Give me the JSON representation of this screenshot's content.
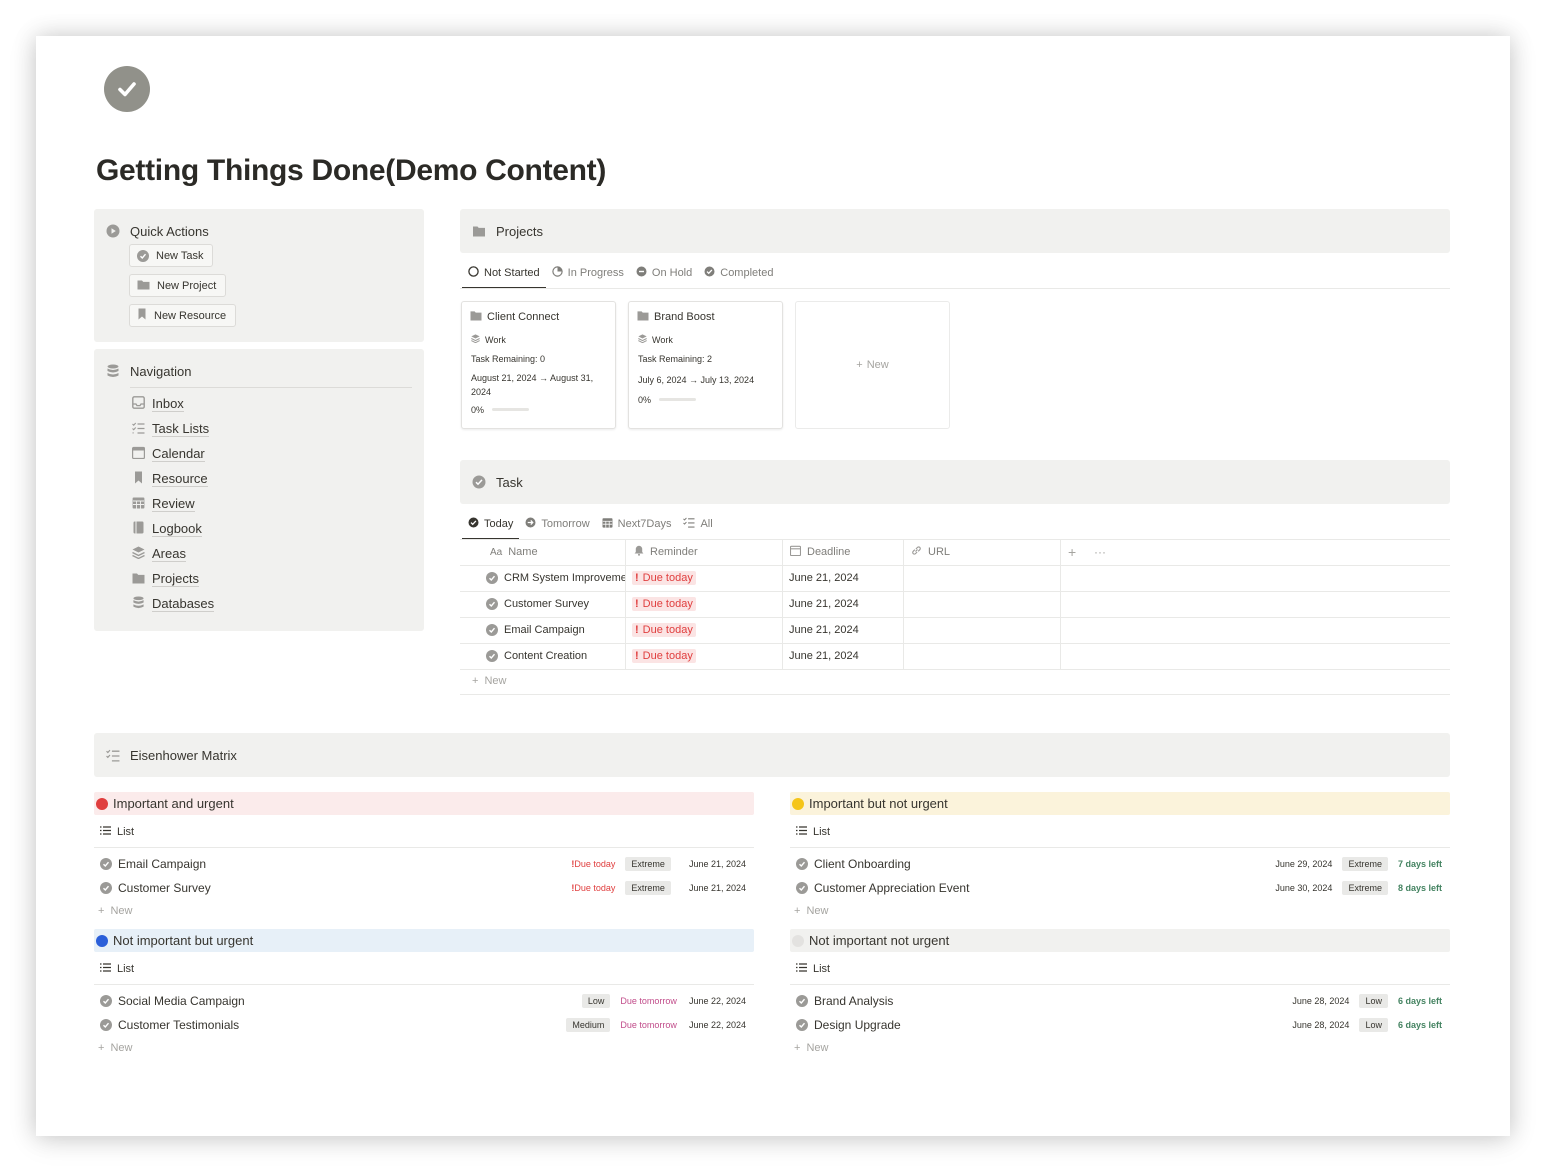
{
  "page": {
    "title": "Getting Things Done(Demo Content)",
    "icon": "check-circle-icon"
  },
  "quick_actions": {
    "title": "Quick Actions",
    "buttons": [
      {
        "label": "New Task",
        "icon": "check-circle-icon"
      },
      {
        "label": "New Project",
        "icon": "folder-icon"
      },
      {
        "label": "New Resource",
        "icon": "bookmark-icon"
      }
    ]
  },
  "navigation": {
    "title": "Navigation",
    "items": [
      {
        "label": "Inbox",
        "icon": "inbox-icon"
      },
      {
        "label": "Task Lists",
        "icon": "checklist-icon"
      },
      {
        "label": "Calendar",
        "icon": "calendar-icon"
      },
      {
        "label": "Resource",
        "icon": "bookmark-icon"
      },
      {
        "label": "Review",
        "icon": "calendar-grid-icon"
      },
      {
        "label": "Logbook",
        "icon": "book-icon"
      },
      {
        "label": "Areas",
        "icon": "layers-icon"
      },
      {
        "label": "Projects",
        "icon": "folder-icon"
      },
      {
        "label": "Databases",
        "icon": "database-icon"
      }
    ]
  },
  "projects": {
    "title": "Projects",
    "tabs": [
      {
        "label": "Not Started",
        "active": true
      },
      {
        "label": "In Progress",
        "active": false
      },
      {
        "label": "On Hold",
        "active": false
      },
      {
        "label": "Completed",
        "active": false
      }
    ],
    "cards": [
      {
        "title": "Client Connect",
        "area": "Work",
        "remaining": "Task Remaining: 0",
        "dates": "August 21, 2024 → August 31, 2024",
        "progress": "0%"
      },
      {
        "title": "Brand Boost",
        "area": "Work",
        "remaining": "Task Remaining: 2",
        "dates": "July 6, 2024 → July 13, 2024",
        "progress": "0%"
      }
    ],
    "new_label": "New"
  },
  "task": {
    "title": "Task",
    "tabs": [
      {
        "label": "Today",
        "active": true
      },
      {
        "label": "Tomorrow",
        "active": false
      },
      {
        "label": "Next7Days",
        "active": false
      },
      {
        "label": "All",
        "active": false
      }
    ],
    "columns": {
      "name": "Name",
      "reminder": "Reminder",
      "deadline": "Deadline",
      "url": "URL",
      "name_prefix": "Aa"
    },
    "rows": [
      {
        "name": "CRM System Improvement",
        "reminder": "Due today",
        "deadline": "June 21, 2024",
        "url": ""
      },
      {
        "name": "Customer Survey",
        "reminder": "Due today",
        "deadline": "June 21, 2024",
        "url": ""
      },
      {
        "name": "Email Campaign",
        "reminder": "Due today",
        "deadline": "June 21, 2024",
        "url": ""
      },
      {
        "name": "Content Creation",
        "reminder": "Due today",
        "deadline": "June 21, 2024",
        "url": ""
      }
    ],
    "new_label": "New",
    "reminder_mark": "!"
  },
  "matrix": {
    "title": "Eisenhower Matrix",
    "list_label": "List",
    "new_label": "New",
    "quadrants": [
      {
        "title": "Important and urgent",
        "color": "#e03e3e",
        "bg": "#fbebeb",
        "rows": [
          {
            "name": "Email Campaign",
            "reminder": "Due today",
            "priority": "Extreme",
            "date": "June 21, 2024"
          },
          {
            "name": "Customer Survey",
            "reminder": "Due today",
            "priority": "Extreme",
            "date": "June 21, 2024"
          }
        ]
      },
      {
        "title": "Important but not urgent",
        "color": "#f5c518",
        "bg": "#fbf3db",
        "rows": [
          {
            "name": "Client Onboarding",
            "date": "June 29, 2024",
            "priority": "Extreme",
            "left": "7 days left"
          },
          {
            "name": "Customer Appreciation Event",
            "date": "June 30, 2024",
            "priority": "Extreme",
            "left": "8 days left"
          }
        ]
      },
      {
        "title": "Not important but urgent",
        "color": "#2b5fd9",
        "bg": "#e7f0f8",
        "rows": [
          {
            "name": "Social Media Campaign",
            "priority": "Low",
            "reminder": "Due tomorrow",
            "date": "June 22, 2024"
          },
          {
            "name": "Customer Testimonials",
            "priority": "Medium",
            "reminder": "Due tomorrow",
            "date": "June 22, 2024"
          }
        ]
      },
      {
        "title": "Not important not urgent",
        "color": "#e3e2e0",
        "bg": "#f1f1ef",
        "rows": [
          {
            "name": "Brand Analysis",
            "date": "June 28, 2024",
            "priority": "Low",
            "left": "6 days left"
          },
          {
            "name": "Design Upgrade",
            "date": "June 28, 2024",
            "priority": "Low",
            "left": "6 days left"
          }
        ]
      }
    ]
  }
}
